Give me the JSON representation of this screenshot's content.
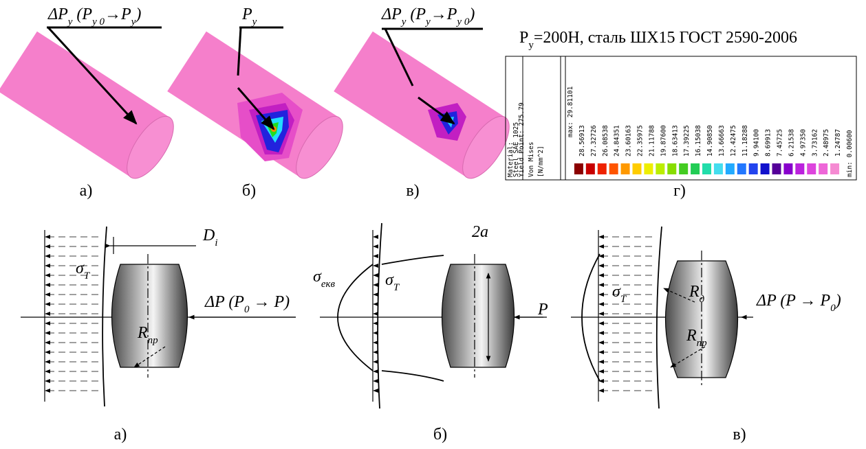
{
  "top_panels": [
    {
      "label": [
        {
          "text": "ΔP"
        },
        {
          "text": "y",
          "sub": true
        },
        {
          "text": " (P"
        },
        {
          "text": "y 0",
          "sub": true
        },
        {
          "text": "→P"
        },
        {
          "text": "y",
          "sub": true
        },
        {
          "text": ")"
        }
      ],
      "caption": "а)"
    },
    {
      "label": [
        {
          "text": "P"
        },
        {
          "text": "y",
          "sub": true
        }
      ],
      "caption": "б)"
    },
    {
      "label": [
        {
          "text": "ΔP"
        },
        {
          "text": "y",
          "sub": true
        },
        {
          "text": " (P"
        },
        {
          "text": "y",
          "sub": true
        },
        {
          "text": "→P"
        },
        {
          "text": "y 0",
          "sub": true
        },
        {
          "text": ")"
        }
      ],
      "caption": "в)"
    }
  ],
  "legend": {
    "title": [
      {
        "text": "P"
      },
      {
        "text": "y",
        "sub": true
      },
      {
        "text": "=200Н, сталь ШХ15 ГОСТ 2590-2006"
      }
    ],
    "material": [
      "Material:",
      "Steel SAE 1025",
      "Yield Point: 275.79"
    ],
    "quantity": [
      "Von Mises",
      "[N/mm^2]"
    ],
    "max": "max: 29.81101",
    "values": [
      "28.56913",
      "27.32726",
      "26.08538",
      "24.84351",
      "23.60163",
      "22.35975",
      "21.11788",
      "19.87600",
      "18.63413",
      "17.39225",
      "16.15038",
      "14.90850",
      "13.66663",
      "12.42475",
      "11.18288",
      "9.94100",
      "8.69913",
      "7.45725",
      "6.21538",
      "4.97350",
      "3.73162",
      "2.48975",
      "1.24787"
    ],
    "min": "min: 0.00600",
    "caption": "г)"
  },
  "bottom_panels": [
    {
      "labels": [
        [
          {
            "text": "D"
          },
          {
            "text": "i",
            "sub": true
          }
        ],
        [
          {
            "text": "σ"
          },
          {
            "text": "T",
            "sub": true
          }
        ],
        [
          {
            "text": "ΔP (P"
          },
          {
            "text": "0",
            "sub": true
          },
          {
            "text": " → P)"
          }
        ],
        [
          {
            "text": "R"
          },
          {
            "text": "пр",
            "sub": true
          }
        ]
      ],
      "caption": "а)"
    },
    {
      "labels": [
        [
          {
            "text": "σ"
          },
          {
            "text": "екв",
            "sub": true
          }
        ],
        [
          {
            "text": "σ"
          },
          {
            "text": "T",
            "sub": true
          }
        ],
        [
          {
            "text": "2a"
          }
        ],
        [
          {
            "text": "P"
          }
        ]
      ],
      "caption": "б)"
    },
    {
      "labels": [
        [
          {
            "text": "σ"
          },
          {
            "text": "T",
            "sub": true
          }
        ],
        [
          {
            "text": "R"
          },
          {
            "text": "д",
            "sub": true
          }
        ],
        [
          {
            "text": "R"
          },
          {
            "text": "пр",
            "sub": true
          }
        ],
        [
          {
            "text": "ΔP (P → P"
          },
          {
            "text": "0",
            "sub": true
          },
          {
            "text": ")"
          }
        ]
      ],
      "caption": "в)"
    }
  ]
}
